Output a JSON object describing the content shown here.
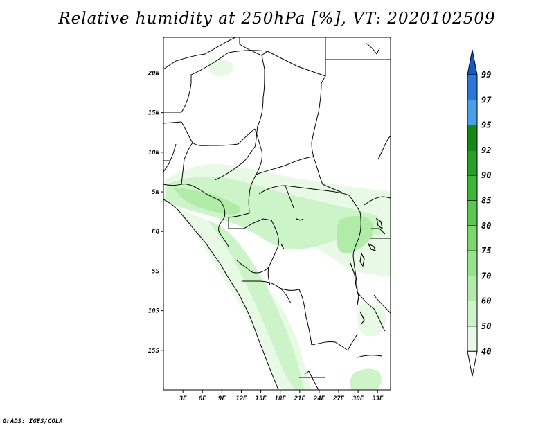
{
  "title": "Relative humidity at 250hPa [%], VT: 2020102509",
  "credit": "GrADS: IGES/COLA",
  "map": {
    "lat_labels": [
      "20N",
      "15N",
      "10N",
      "5N",
      "EQ",
      "5S",
      "10S",
      "15S"
    ],
    "lon_labels": [
      "3E",
      "6E",
      "9E",
      "12E",
      "15E",
      "18E",
      "21E",
      "24E",
      "27E",
      "30E",
      "33E"
    ],
    "lon_range": [
      0,
      35
    ],
    "lat_range": [
      -20,
      24.5
    ]
  },
  "colorbar": {
    "labels": [
      "40",
      "50",
      "60",
      "70",
      "75",
      "80",
      "85",
      "90",
      "92",
      "95",
      "97",
      "99"
    ],
    "colors": [
      "#ffffff",
      "#e8fae6",
      "#cdf4c8",
      "#b0eca8",
      "#95e48b",
      "#7ad86e",
      "#58c850",
      "#3cb638",
      "#26a127",
      "#138a17",
      "#4a9fe9",
      "#2b78d9",
      "#1659c4"
    ]
  }
}
